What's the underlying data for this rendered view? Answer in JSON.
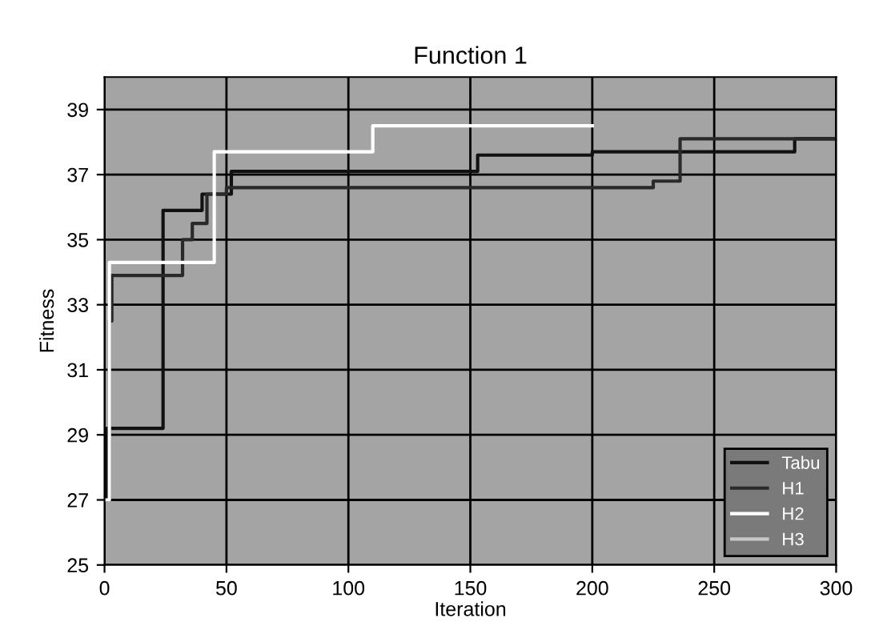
{
  "chart_data": {
    "type": "step",
    "title": "Function 1",
    "xlabel": "Iteration",
    "ylabel": "Fitness",
    "xlim": [
      0,
      300
    ],
    "xticks": [
      0,
      50,
      100,
      150,
      200,
      250,
      300
    ],
    "ylim": [
      25,
      40
    ],
    "yticks": [
      25,
      27,
      29,
      31,
      33,
      35,
      37,
      39
    ],
    "grid": true,
    "legend": "bottom right",
    "marker": "none",
    "line_style": "solid",
    "series": [
      {
        "name": "Tabu",
        "color": "#111111",
        "x": [
          0,
          1,
          24,
          40,
          52,
          153,
          200,
          283,
          300
        ],
        "values": [
          27,
          29.2,
          35.9,
          36.4,
          37.1,
          37.6,
          37.7,
          38.1,
          38.1
        ]
      },
      {
        "name": "H1",
        "color": "#2a2a2a",
        "x": [
          0,
          2,
          3,
          32,
          36,
          42,
          50,
          225,
          236,
          300
        ],
        "values": [
          27,
          32.5,
          33.9,
          35.0,
          35.5,
          36.4,
          36.6,
          36.8,
          38.1,
          38.1
        ]
      },
      {
        "name": "H2",
        "color": "#ffffff",
        "x": [
          0,
          2,
          45,
          110,
          200
        ],
        "values": [
          27,
          34.3,
          37.7,
          38.5,
          38.5
        ]
      },
      {
        "name": "H3",
        "color": "#c8c8c8"
      }
    ]
  }
}
